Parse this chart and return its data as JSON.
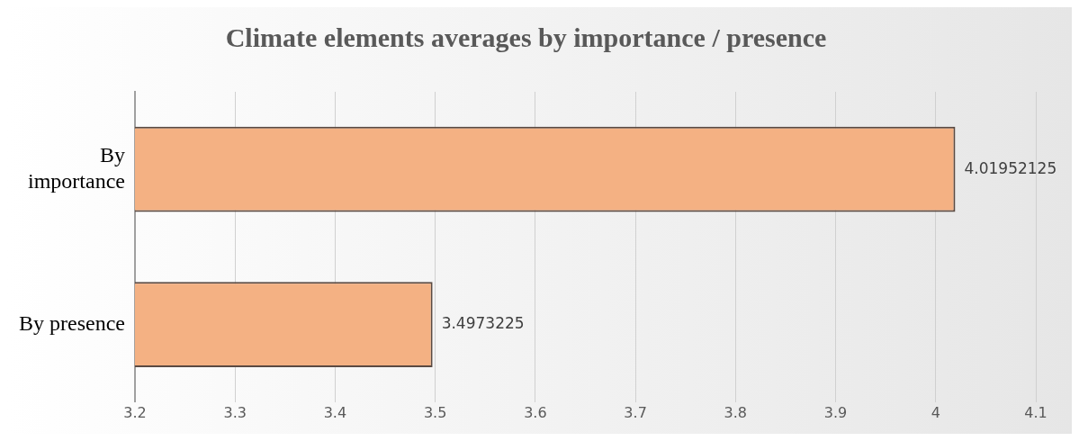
{
  "chart_data": {
    "type": "bar",
    "orientation": "horizontal",
    "title": "Climate elements averages by importance / presence",
    "categories": [
      "By importance",
      "By presence"
    ],
    "values": [
      4.01952125,
      3.4973225
    ],
    "color": "#f4b183",
    "xlim": [
      3.2,
      4.1
    ],
    "xticks": [
      3.2,
      3.3,
      3.4,
      3.5,
      3.6,
      3.7,
      3.8,
      3.9,
      4,
      4.1
    ],
    "grid": "x",
    "data_labels": true,
    "legend": false
  }
}
